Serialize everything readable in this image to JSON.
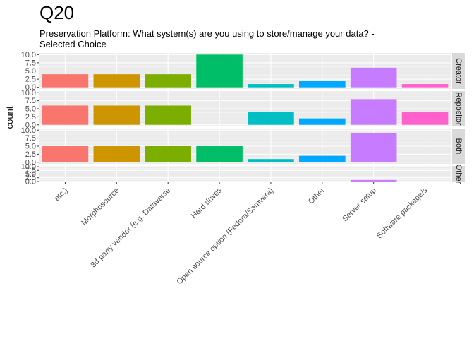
{
  "chart_data": {
    "type": "bar",
    "title": "Q20",
    "subtitle_lines": [
      "Preservation Platform: What system(s) are you using to store/manage your data? -",
      "Selected Choice"
    ],
    "xlabel": "",
    "ylabel": "count",
    "categories": [
      "etc.)",
      "Morphosource",
      "3d party vendor (e.g. Dataverse",
      "Hard drives",
      "Open source option (Fedora/Samvera)",
      "Other",
      "Server setup",
      "Software package/s"
    ],
    "colors": [
      "#F8766D",
      "#CD9600",
      "#7CAE00",
      "#00BE67",
      "#00BFC4",
      "#00A9FF",
      "#C77CFF",
      "#FF61CC"
    ],
    "y_ticks": [
      "0.0",
      "2.5",
      "5.0",
      "7.5",
      "10.0"
    ],
    "ylim": [
      0,
      10
    ],
    "grid": true,
    "legend": "none",
    "facets": [
      {
        "label": "Creator",
        "values": [
          4,
          4,
          4,
          10,
          1,
          2,
          6,
          1
        ]
      },
      {
        "label": "Repository",
        "strip_text": "Repositor",
        "values": [
          6,
          6,
          6,
          0,
          4,
          2,
          8,
          4
        ]
      },
      {
        "label": "Both",
        "values": [
          5,
          5,
          5,
          5,
          1,
          2,
          9,
          0
        ]
      },
      {
        "label": "Other",
        "values": [
          0,
          0,
          0,
          0,
          0,
          0,
          1,
          0
        ]
      }
    ]
  }
}
